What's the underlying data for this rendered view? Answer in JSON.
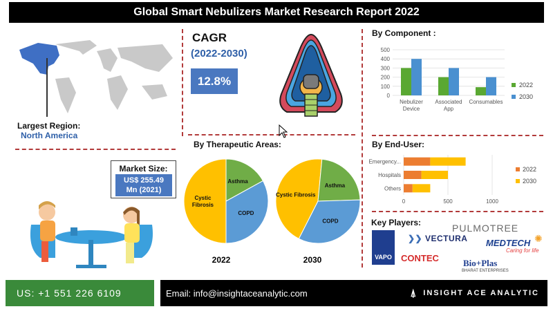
{
  "header": {
    "title": "Global Smart Nebulizers Market Research Report 2022"
  },
  "region": {
    "label": "Largest Region:",
    "value": "North America"
  },
  "market_size": {
    "label": "Market Size:",
    "value_line1": "US$ 255.49",
    "value_line2": "Mn (2021)"
  },
  "cagr": {
    "label": "CAGR",
    "period": "(2022-2030)",
    "value": "12.8%"
  },
  "therapeutic": {
    "heading": "By Therapeutic Areas:"
  },
  "component": {
    "heading": "By Component :"
  },
  "end_user": {
    "heading": "By End-User:"
  },
  "key_players": {
    "heading": "Key Players:",
    "vapo": "VAPO",
    "vectura": "VECTURA",
    "pulmotree": "PULMOTREE",
    "medtech": "MEDTECH",
    "medtech_tagline": "Caring for life",
    "contec": "CONTEC",
    "bioplas": "Bio+Plas",
    "bioplas_sub": "BHARAT ENTERPRISES"
  },
  "footer": {
    "phone": "US: +1 551 226 6109",
    "email": "Email: info@insightaceanalytic.com",
    "brand": "INSIGHT ACE ANALYTIC"
  },
  "colors": {
    "y2022": "#5aa832",
    "y2030": "#4a90d0",
    "eu2022": "#ec7d31",
    "eu2030": "#ffc000",
    "pie_cf": "#ffc000",
    "pie_asthma": "#70ad47",
    "pie_copd": "#5b9bd5"
  },
  "chart_data": [
    {
      "type": "bar",
      "name": "component",
      "categories": [
        "Nebulizer Device",
        "Associated App",
        "Consumables"
      ],
      "series": [
        {
          "name": "2022",
          "values": [
            300,
            200,
            90
          ]
        },
        {
          "name": "2030",
          "values": [
            400,
            300,
            200
          ]
        }
      ],
      "ylim": [
        0,
        500
      ],
      "yticks": [
        0,
        100,
        200,
        300,
        400,
        500
      ],
      "legend": "right"
    },
    {
      "type": "bar",
      "orientation": "horizontal",
      "name": "end_user",
      "categories": [
        "Emergency...",
        "Hospitals",
        "Others"
      ],
      "series": [
        {
          "name": "2022",
          "values": [
            300,
            200,
            100
          ]
        },
        {
          "name": "2030",
          "values": [
            400,
            300,
            200
          ]
        }
      ],
      "stacked": true,
      "xlim": [
        0,
        1000
      ],
      "xticks": [
        0,
        500,
        1000
      ],
      "legend": "right"
    },
    {
      "type": "pie",
      "name": "therapeutic_2022",
      "label": "2022",
      "slices": [
        {
          "name": "Cystic Fibrosis",
          "value": 50
        },
        {
          "name": "Asthma",
          "value": 17
        },
        {
          "name": "COPD",
          "value": 33
        }
      ]
    },
    {
      "type": "pie",
      "name": "therapeutic_2030",
      "label": "2030",
      "slices": [
        {
          "name": "Cystic Fibrosis",
          "value": 44
        },
        {
          "name": "Asthma",
          "value": 23
        },
        {
          "name": "COPD",
          "value": 33
        }
      ]
    }
  ]
}
